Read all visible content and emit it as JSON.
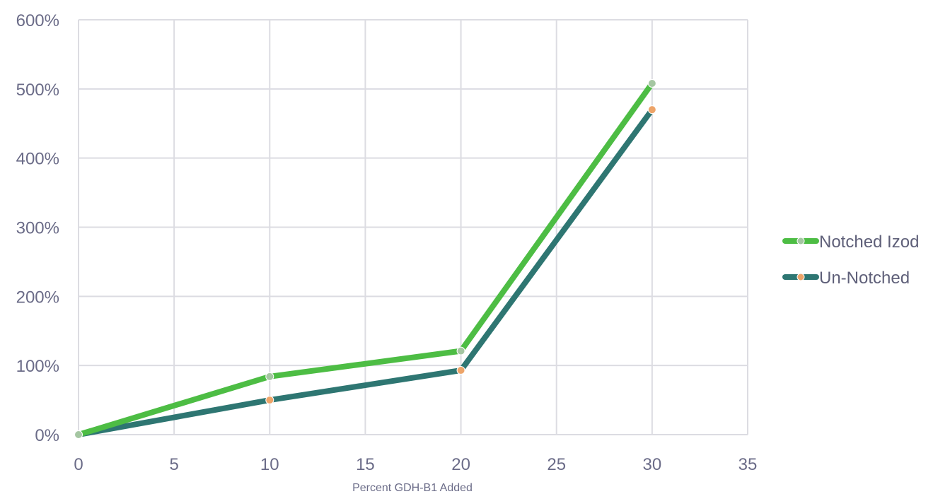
{
  "chart_data": {
    "type": "line",
    "title": "",
    "xlabel": "Percent GDH-B1 Added",
    "ylabel": "",
    "xlim": [
      0,
      35
    ],
    "ylim": [
      0,
      600
    ],
    "x_ticks": [
      0,
      5,
      10,
      15,
      20,
      25,
      30,
      35
    ],
    "y_ticks": [
      0,
      100,
      200,
      300,
      400,
      500,
      600
    ],
    "x_tick_labels": [
      "0",
      "5",
      "10",
      "15",
      "20",
      "25",
      "30",
      "35"
    ],
    "y_tick_labels": [
      "0%",
      "100%",
      "200%",
      "300%",
      "400%",
      "500%",
      "600%"
    ],
    "grid": true,
    "legend_position": "right",
    "series": [
      {
        "name": "Notched Izod",
        "color": "#4dbd44",
        "marker_color": "#a5c6a2",
        "x": [
          0,
          10,
          20,
          30
        ],
        "y": [
          0,
          84,
          121,
          508
        ]
      },
      {
        "name": "Un-Notched",
        "color": "#2e7672",
        "marker_color": "#eda469",
        "x": [
          0,
          10,
          20,
          30
        ],
        "y": [
          0,
          50,
          93,
          470
        ]
      }
    ]
  }
}
